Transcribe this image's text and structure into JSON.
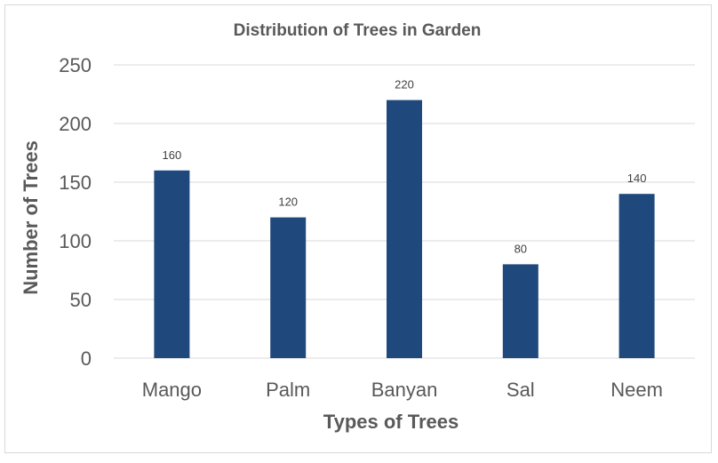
{
  "chart_data": {
    "type": "bar",
    "title": "Distribution of Trees in Garden",
    "xlabel": "Types of Trees",
    "ylabel": "Number of Trees",
    "categories": [
      "Mango",
      "Palm",
      "Banyan",
      "Sal",
      "Neem"
    ],
    "values": [
      160,
      120,
      220,
      80,
      140
    ],
    "data_labels": [
      "160",
      "120",
      "220",
      "80",
      "140"
    ],
    "ylim": [
      0,
      250
    ],
    "yticks": [
      0,
      50,
      100,
      150,
      200,
      250
    ],
    "ytick_labels": [
      "0",
      "50",
      "100",
      "150",
      "200",
      "250"
    ],
    "grid": true,
    "legend": "none",
    "bar_color": "#1F497D"
  }
}
